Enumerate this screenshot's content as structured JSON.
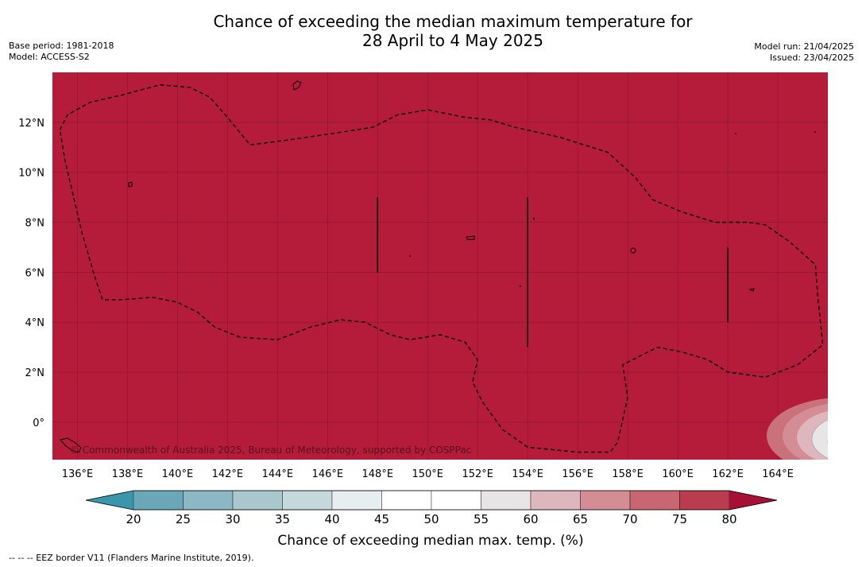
{
  "title_line1": "Chance of exceeding the median maximum temperature for",
  "title_line2": "28 April to 4 May 2025",
  "meta_left": {
    "base_period": "Base period: 1981-2018",
    "model": "Model: ACCESS-S2"
  },
  "meta_right": {
    "model_run": "Model run: 21/04/2025",
    "issued": "Issued: 23/04/2025"
  },
  "map": {
    "lon_range": [
      135,
      166
    ],
    "lat_range": [
      -1.5,
      14
    ],
    "x_ticks": [
      {
        "value": 136,
        "label": "136°E"
      },
      {
        "value": 138,
        "label": "138°E"
      },
      {
        "value": 140,
        "label": "140°E"
      },
      {
        "value": 142,
        "label": "142°E"
      },
      {
        "value": 144,
        "label": "144°E"
      },
      {
        "value": 146,
        "label": "146°E"
      },
      {
        "value": 148,
        "label": "148°E"
      },
      {
        "value": 150,
        "label": "150°E"
      },
      {
        "value": 152,
        "label": "152°E"
      },
      {
        "value": 154,
        "label": "154°E"
      },
      {
        "value": 156,
        "label": "156°E"
      },
      {
        "value": 158,
        "label": "158°E"
      },
      {
        "value": 160,
        "label": "160°E"
      },
      {
        "value": 162,
        "label": "162°E"
      },
      {
        "value": 164,
        "label": "164°E"
      }
    ],
    "y_ticks": [
      {
        "value": 12,
        "label": "12°N"
      },
      {
        "value": 10,
        "label": "10°N"
      },
      {
        "value": 8,
        "label": "8°N"
      },
      {
        "value": 6,
        "label": "6°N"
      },
      {
        "value": 4,
        "label": "4°N"
      },
      {
        "value": 2,
        "label": "2°N"
      },
      {
        "value": 0,
        "label": "0°"
      }
    ],
    "dominant_color": "#b41c3a",
    "gridlines": true,
    "credit": "© Commonwealth of Australia 2025, Bureau of Meteorology, supported by COSPPac",
    "eez_border": [
      [
        135.3,
        11.7
      ],
      [
        135.6,
        12.3
      ],
      [
        136.5,
        12.8
      ],
      [
        137.8,
        13.1
      ],
      [
        139.3,
        13.5
      ],
      [
        140.5,
        13.4
      ],
      [
        141.3,
        13.0
      ],
      [
        142,
        12.2
      ],
      [
        142.9,
        11.1
      ],
      [
        144.5,
        11.3
      ],
      [
        146.5,
        11.6
      ],
      [
        147.8,
        11.8
      ],
      [
        148.8,
        12.3
      ],
      [
        150,
        12.5
      ],
      [
        151.5,
        12.2
      ],
      [
        152.5,
        12.1
      ],
      [
        153.5,
        11.8
      ],
      [
        155.3,
        11.4
      ],
      [
        157.2,
        10.8
      ],
      [
        158.3,
        9.8
      ],
      [
        159,
        8.9
      ],
      [
        160.2,
        8.4
      ],
      [
        161.5,
        8.0
      ],
      [
        162.8,
        8.0
      ],
      [
        163.5,
        7.9
      ],
      [
        164.5,
        7.2
      ],
      [
        165.5,
        6.3
      ],
      [
        165.6,
        5.0
      ],
      [
        165.8,
        3.1
      ],
      [
        164.8,
        2.3
      ],
      [
        163.5,
        1.8
      ],
      [
        162,
        2.0
      ],
      [
        161.2,
        2.5
      ],
      [
        160.2,
        2.8
      ],
      [
        159.2,
        3.0
      ],
      [
        157.8,
        2.3
      ],
      [
        158,
        1.0
      ],
      [
        157.6,
        -0.8
      ],
      [
        157.3,
        -1.2
      ],
      [
        156,
        -1.2
      ],
      [
        154,
        -1.0
      ],
      [
        153,
        -0.3
      ],
      [
        152.2,
        0.8
      ],
      [
        151.8,
        1.6
      ],
      [
        152,
        2.5
      ],
      [
        151.5,
        3.2
      ],
      [
        150.5,
        3.5
      ],
      [
        149.3,
        3.3
      ],
      [
        148.5,
        3.5
      ],
      [
        147.5,
        4.0
      ],
      [
        146.5,
        4.1
      ],
      [
        145.3,
        3.8
      ],
      [
        144,
        3.3
      ],
      [
        142.5,
        3.4
      ],
      [
        141.5,
        3.8
      ],
      [
        140.8,
        4.4
      ],
      [
        140,
        4.8
      ],
      [
        139,
        5.0
      ],
      [
        137.8,
        4.9
      ],
      [
        137,
        4.9
      ],
      [
        136.7,
        5.8
      ],
      [
        136.2,
        7.5
      ],
      [
        135.8,
        9.2
      ],
      [
        135.5,
        10.5
      ],
      [
        135.3,
        11.7
      ]
    ],
    "island_chains": [
      {
        "lon": 148,
        "lat_from": 6,
        "lat_to": 9
      },
      {
        "lon": 154,
        "lat_from": 3,
        "lat_to": 9
      },
      {
        "lon": 162,
        "lat_from": 4,
        "lat_to": 7
      }
    ]
  },
  "legend": {
    "labels": [
      "20",
      "25",
      "30",
      "35",
      "40",
      "45",
      "50",
      "55",
      "60",
      "65",
      "70",
      "75",
      "80"
    ],
    "colors": [
      "#6aa8b9",
      "#8cb7c4",
      "#a9c7cd",
      "#c5d8dc",
      "#e6eef0",
      "#ffffff",
      "#ffffff",
      "#e7e5e6",
      "#ddb7bd",
      "#d48c95",
      "#c86772",
      "#ba3d4f"
    ],
    "under_color": "#3a96aa",
    "over_color": "#a51034",
    "title": "Chance of exceeding median max. temp. (%)"
  },
  "footnote": "--  --  -- EEZ border V11 (Flanders Marine Institute, 2019)."
}
